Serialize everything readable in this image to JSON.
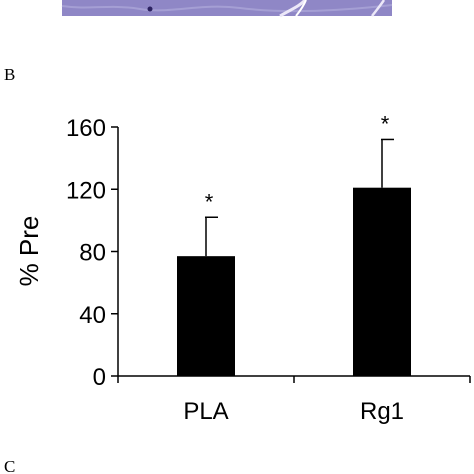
{
  "panel_labels": {
    "b": "B",
    "c": "C"
  },
  "colors": {
    "histology_purple": "#8f87c6",
    "histology_light": "#ece8f8",
    "bar": "#000000",
    "axis": "#000000"
  },
  "chart_data": {
    "type": "bar",
    "title": "",
    "xlabel": "",
    "ylabel": "% Pre",
    "categories": [
      "PLA",
      "Rg1"
    ],
    "values": [
      77,
      121
    ],
    "errors": [
      25,
      31
    ],
    "annotations": [
      "*",
      "*"
    ],
    "ylim": [
      0,
      160
    ],
    "yticks": [
      0,
      40,
      80,
      120,
      160
    ],
    "grid": false,
    "legend": "none"
  }
}
